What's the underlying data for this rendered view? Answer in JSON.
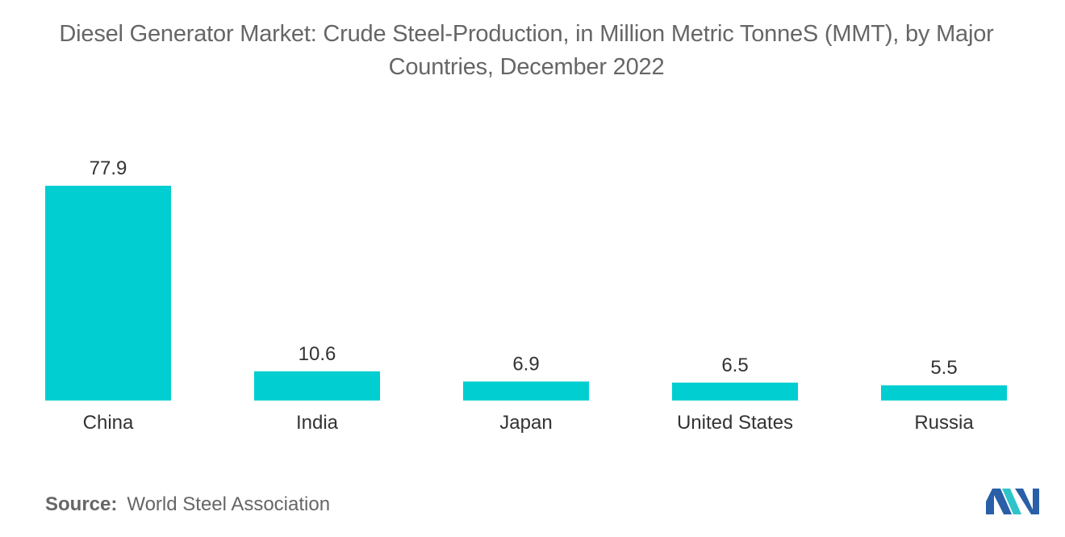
{
  "title": {
    "line1": "Diesel Generator Market: Crude Steel-Production, in Million Metric TonneS (MMT), by Major",
    "line2": "Countries, December 2022"
  },
  "chart_data": {
    "type": "bar",
    "title": "Diesel Generator Market: Crude Steel-Production, in Million Metric TonneS (MMT), by Major Countries, December 2022",
    "categories": [
      "China",
      "India",
      "Japan",
      "United States",
      "Russia"
    ],
    "values": [
      77.9,
      10.6,
      6.9,
      6.5,
      5.5
    ],
    "value_labels": [
      "77.9",
      "10.6",
      "6.9",
      "6.5",
      "5.5"
    ],
    "xlabel": "",
    "ylabel": "",
    "ylim": [
      0,
      77.9
    ],
    "grid": false,
    "bar_color": "#00CED1"
  },
  "footer": {
    "source_label": "Source:",
    "source_text": "World Steel Association"
  },
  "logo": {
    "icon": "mordor-intelligence-logo-icon",
    "colors": [
      "#2A5FA8",
      "#2EC4C9"
    ]
  }
}
